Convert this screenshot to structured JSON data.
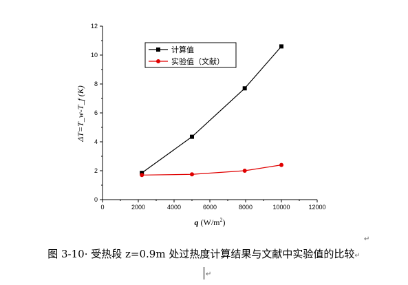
{
  "chart_data": {
    "type": "line",
    "x_ticks": [
      0,
      2000,
      4000,
      6000,
      8000,
      10000,
      12000
    ],
    "y_ticks": [
      0,
      2,
      4,
      6,
      8,
      10,
      12
    ],
    "xlim": [
      0,
      12000
    ],
    "ylim": [
      0,
      12
    ],
    "xlabel_var": "q",
    "xlabel_unit": "(W/m",
    "xlabel_sup": "2",
    "xlabel_close": ")",
    "ylabel": "ΔT=T_w-T_f (K)",
    "legend_position": "top-left",
    "grid": false,
    "series": [
      {
        "name": "计算值",
        "color": "#000000",
        "marker": "square",
        "x": [
          2200,
          5000,
          7950,
          10000
        ],
        "y": [
          1.85,
          4.35,
          7.7,
          10.6
        ]
      },
      {
        "name": "实验值（文献）",
        "color": "#e00000",
        "marker": "circle",
        "x": [
          2200,
          5000,
          7950,
          10000
        ],
        "y": [
          1.7,
          1.75,
          2.0,
          2.4
        ]
      }
    ]
  },
  "caption": "图 3-10· 受热段 z=0.9m 处过热度计算结果与文献中实验值的比较",
  "para_mark": "↵"
}
